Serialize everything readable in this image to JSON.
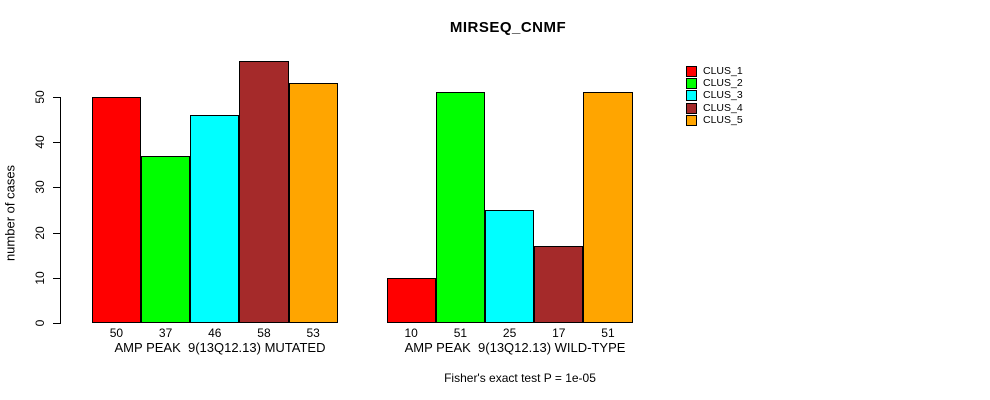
{
  "title": "MIRSEQ_CNMF",
  "chart_data": {
    "type": "bar",
    "title": "MIRSEQ_CNMF",
    "xlabel": "",
    "ylabel": "number of cases",
    "ylim": [
      0,
      50
    ],
    "yticks": [
      0,
      10,
      20,
      30,
      40,
      50
    ],
    "grid": false,
    "legend_position": "right",
    "bar_border_color": "#000000",
    "categories": [
      "AMP PEAK  9(13Q12.13) MUTATED",
      "AMP PEAK  9(13Q12.13) WILD-TYPE"
    ],
    "series": [
      {
        "name": "CLUS_1",
        "color": "#FF0000",
        "values": [
          50,
          10
        ]
      },
      {
        "name": "CLUS_2",
        "color": "#00FF00",
        "values": [
          37,
          51
        ]
      },
      {
        "name": "CLUS_3",
        "color": "#00FFFF",
        "values": [
          46,
          25
        ]
      },
      {
        "name": "CLUS_4",
        "color": "#A52A2A",
        "values": [
          58,
          17
        ]
      },
      {
        "name": "CLUS_5",
        "color": "#FFA500",
        "values": [
          53,
          51
        ]
      }
    ],
    "value_labels_shown": true,
    "annotation": "Fisher's exact test P = 1e-05"
  }
}
